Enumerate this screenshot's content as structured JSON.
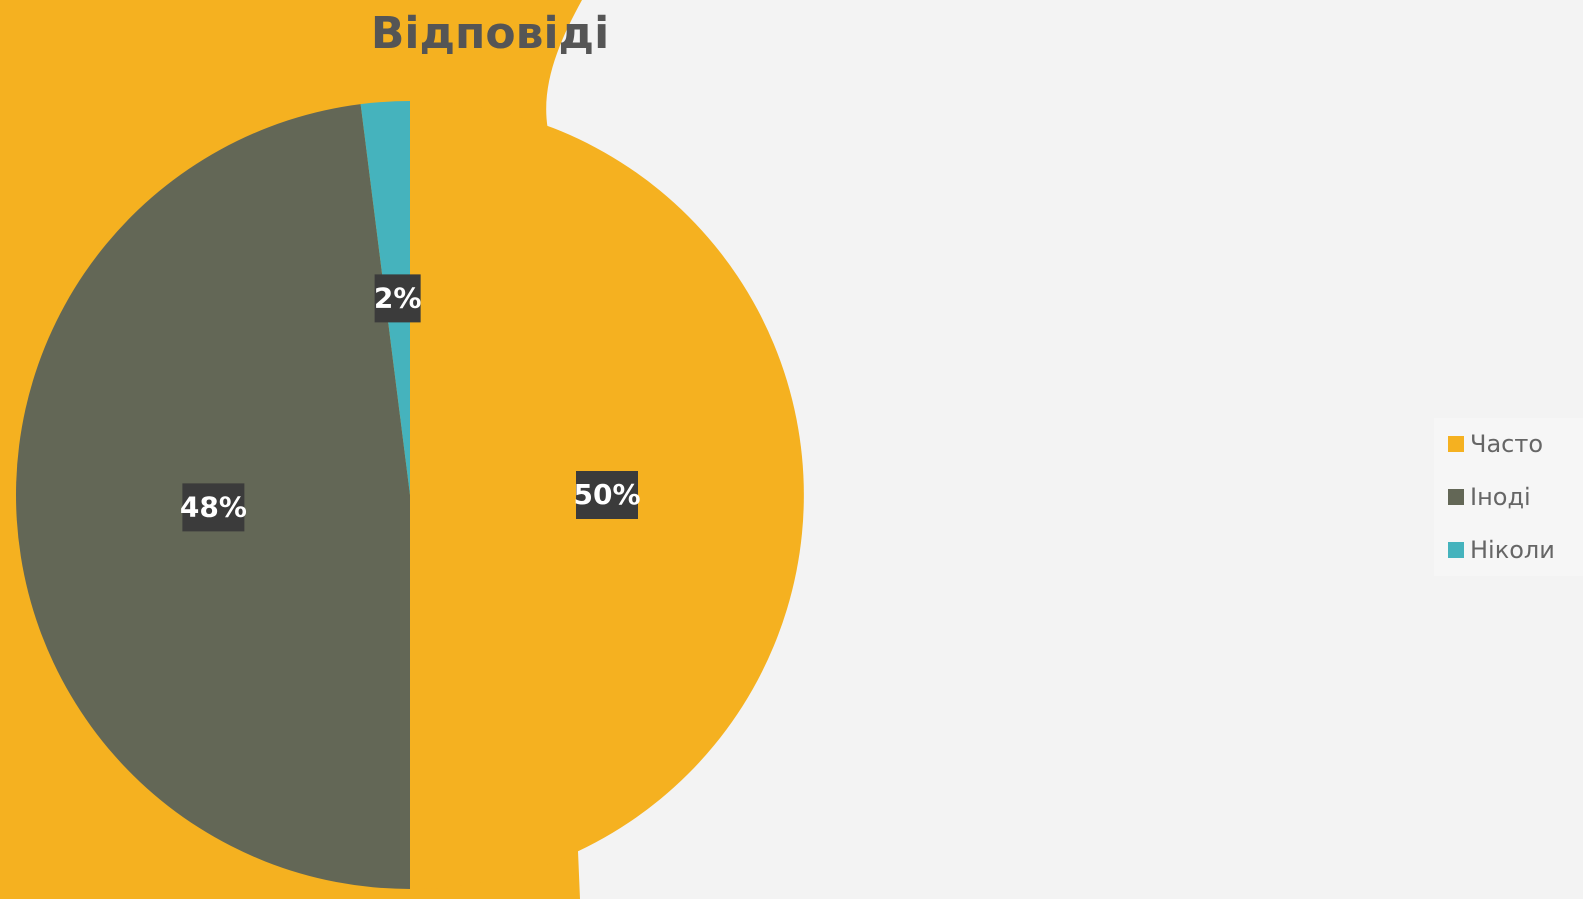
{
  "chart_data": {
    "type": "pie",
    "title": "Відповіді",
    "categories": [
      "Часто",
      "Іноді",
      "Ніколи"
    ],
    "values": [
      50,
      48,
      2
    ],
    "value_labels": [
      "50%",
      "48%",
      "2%"
    ],
    "colors": [
      "#F5B120",
      "#636756",
      "#45B3BD"
    ],
    "legend": "right"
  }
}
